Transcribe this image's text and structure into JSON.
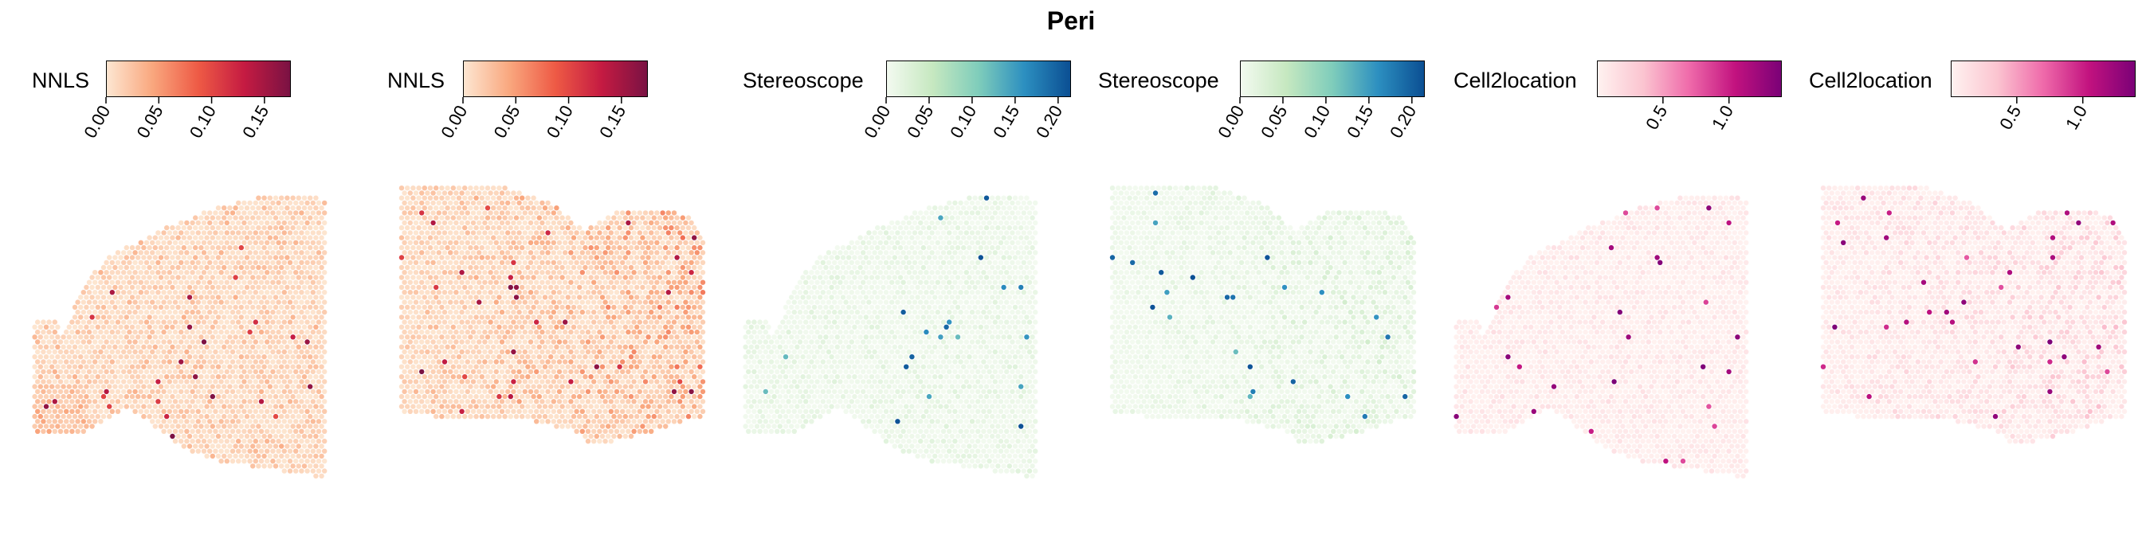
{
  "title": "Peri",
  "chart_data": [
    {
      "type": "heatmap",
      "method": "NNLS",
      "legend_label": "NNLS",
      "ticks": [
        "0.00",
        "0.05",
        "0.10",
        "0.15"
      ],
      "tick_values": [
        0,
        0.05,
        0.1,
        0.15
      ],
      "range": [
        0,
        0.175
      ],
      "colors": [
        "#fde6d1",
        "#f9a77e",
        "#ee5a45",
        "#c51b42",
        "#7a1243"
      ],
      "shape": "A",
      "bias": "left-low",
      "intensity": 0.22
    },
    {
      "type": "heatmap",
      "method": "NNLS",
      "legend_label": "NNLS",
      "ticks": [
        "0.00",
        "0.05",
        "0.10",
        "0.15"
      ],
      "tick_values": [
        0,
        0.05,
        0.1,
        0.15
      ],
      "range": [
        0,
        0.175
      ],
      "colors": [
        "#fde6d1",
        "#f9a77e",
        "#ee5a45",
        "#c51b42",
        "#7a1243"
      ],
      "shape": "B",
      "bias": "right-high",
      "intensity": 0.33
    },
    {
      "type": "heatmap",
      "method": "Stereoscope",
      "legend_label": "Stereoscope",
      "ticks": [
        "0.00",
        "0.05",
        "0.10",
        "0.15",
        "0.20"
      ],
      "tick_values": [
        0,
        0.05,
        0.1,
        0.15,
        0.2
      ],
      "range": [
        0,
        0.215
      ],
      "colors": [
        "#f3faf0",
        "#c6e8c0",
        "#7fcdbb",
        "#2c8fc0",
        "#0b4f93"
      ],
      "shape": "A",
      "bias": "uniform",
      "intensity": 0.12
    },
    {
      "type": "heatmap",
      "method": "Stereoscope",
      "legend_label": "Stereoscope",
      "ticks": [
        "0.00",
        "0.05",
        "0.10",
        "0.15",
        "0.20"
      ],
      "tick_values": [
        0,
        0.05,
        0.1,
        0.15,
        0.2
      ],
      "range": [
        0,
        0.215
      ],
      "colors": [
        "#f3faf0",
        "#c6e8c0",
        "#7fcdbb",
        "#2c8fc0",
        "#0b4f93"
      ],
      "shape": "B",
      "bias": "right-high",
      "intensity": 0.15
    },
    {
      "type": "heatmap",
      "method": "Cell2location",
      "legend_label": "Cell2location",
      "ticks": [
        "0.5",
        "1.0"
      ],
      "tick_values": [
        0.5,
        1.0
      ],
      "range": [
        0,
        1.4
      ],
      "colors": [
        "#fff2f0",
        "#fbc4d0",
        "#ef6aaa",
        "#c2127f",
        "#7b0177"
      ],
      "shape": "A",
      "bias": "uniform",
      "intensity": 0.12
    },
    {
      "type": "heatmap",
      "method": "Cell2location",
      "legend_label": "Cell2location",
      "ticks": [
        "0.5",
        "1.0"
      ],
      "tick_values": [
        0.5,
        1.0
      ],
      "range": [
        0,
        1.4
      ],
      "colors": [
        "#fff2f0",
        "#fbc4d0",
        "#ef6aaa",
        "#c2127f",
        "#7b0177"
      ],
      "shape": "B",
      "bias": "right-high",
      "intensity": 0.22
    }
  ]
}
